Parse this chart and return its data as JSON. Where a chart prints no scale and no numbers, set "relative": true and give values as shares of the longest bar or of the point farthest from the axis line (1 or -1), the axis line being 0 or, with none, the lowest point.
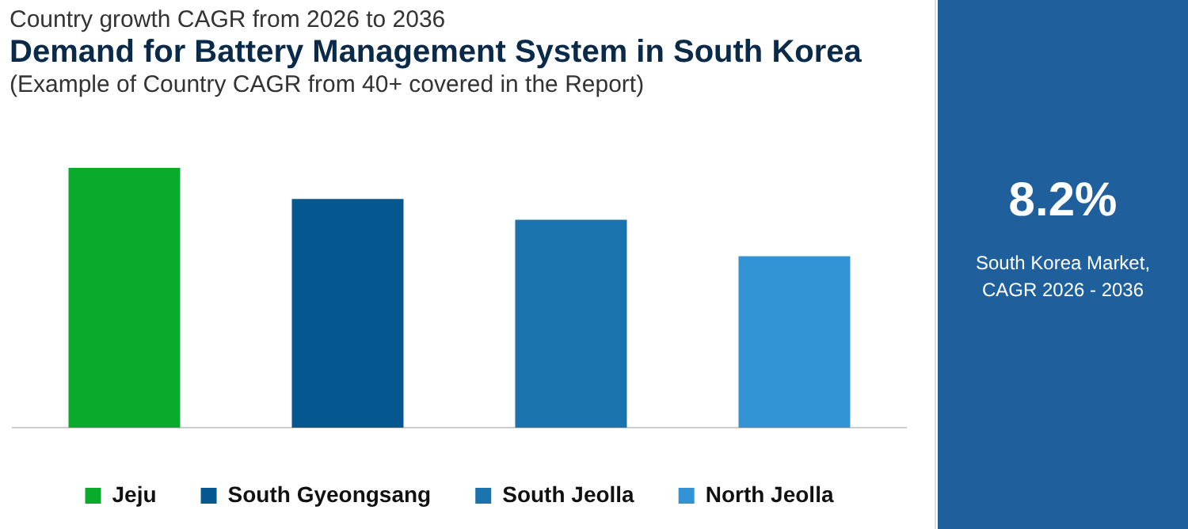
{
  "chart_data": [
    {
      "type": "bar",
      "title": "Demand for Battery Management System in South Korea",
      "subtitle": "(Example of Country CAGR from 40+ covered in the Report)",
      "annotations": [
        "Country growth CAGR from 2026 to 2036"
      ],
      "categories": [
        null,
        null,
        null,
        null
      ],
      "stacked": true,
      "series": [
        {
          "name": "Jeju",
          "color": "#0aab2c",
          "values": [
            1,
            null,
            null,
            null
          ]
        },
        {
          "name": "South Gyeongsang",
          "color": "#04588f",
          "values": [
            null,
            0.88,
            null,
            null
          ]
        },
        {
          "name": "South Jeolla",
          "color": "#1b73ad",
          "values": [
            null,
            null,
            0.8,
            null
          ]
        },
        {
          "name": "North Jeolla",
          "color": "#3193d4",
          "values": [
            null,
            null,
            null,
            0.66
          ]
        }
      ],
      "relative": true,
      "legend": "bottom"
    },
    {
      "type": "other",
      "annotations": [
        "8.2%",
        "South Korea Market, CAGR 2026 - 2036"
      ]
    }
  ]
}
